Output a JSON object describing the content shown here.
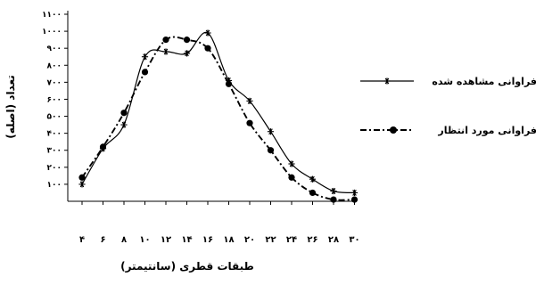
{
  "chart_data": {
    "type": "line",
    "x": [
      4,
      6,
      8,
      10,
      12,
      14,
      16,
      18,
      20,
      22,
      24,
      26,
      28,
      30
    ],
    "x_tick_labels": [
      "۴",
      "۶",
      "۸",
      "۱۰",
      "۱۲",
      "۱۴",
      "۱۶",
      "۱۸",
      "۲۰",
      "۲۲",
      "۲۴",
      "۲۶",
      "۲۸",
      "۳۰"
    ],
    "y_tick_labels": [
      "۱۰۰",
      "۲۰۰",
      "۳۰۰",
      "۴۰۰",
      "۵۰۰",
      "۶۰۰",
      "۷۰۰",
      "۸۰۰",
      "۹۰۰",
      "۱۰۰۰",
      "۱۱۰۰"
    ],
    "y_ticks": [
      100,
      200,
      300,
      400,
      500,
      600,
      700,
      800,
      900,
      1000,
      1100
    ],
    "ylim": [
      0,
      1100
    ],
    "xlabel": "طبقات قطری (سانتیمتر)",
    "ylabel": "تعداد (اصله)",
    "grid": false,
    "legend_position": "right",
    "series": [
      {
        "name": "فراوانی مشاهده شده",
        "style": "solid",
        "marker": "asterisk",
        "color": "#000000",
        "values": [
          100,
          310,
          450,
          850,
          880,
          870,
          990,
          710,
          590,
          410,
          220,
          130,
          60,
          50
        ]
      },
      {
        "name": "فراوانی مورد انتظار",
        "style": "dash-dot",
        "marker": "circle",
        "color": "#000000",
        "values": [
          140,
          320,
          520,
          760,
          950,
          950,
          900,
          690,
          460,
          300,
          140,
          50,
          10,
          10
        ]
      }
    ]
  }
}
